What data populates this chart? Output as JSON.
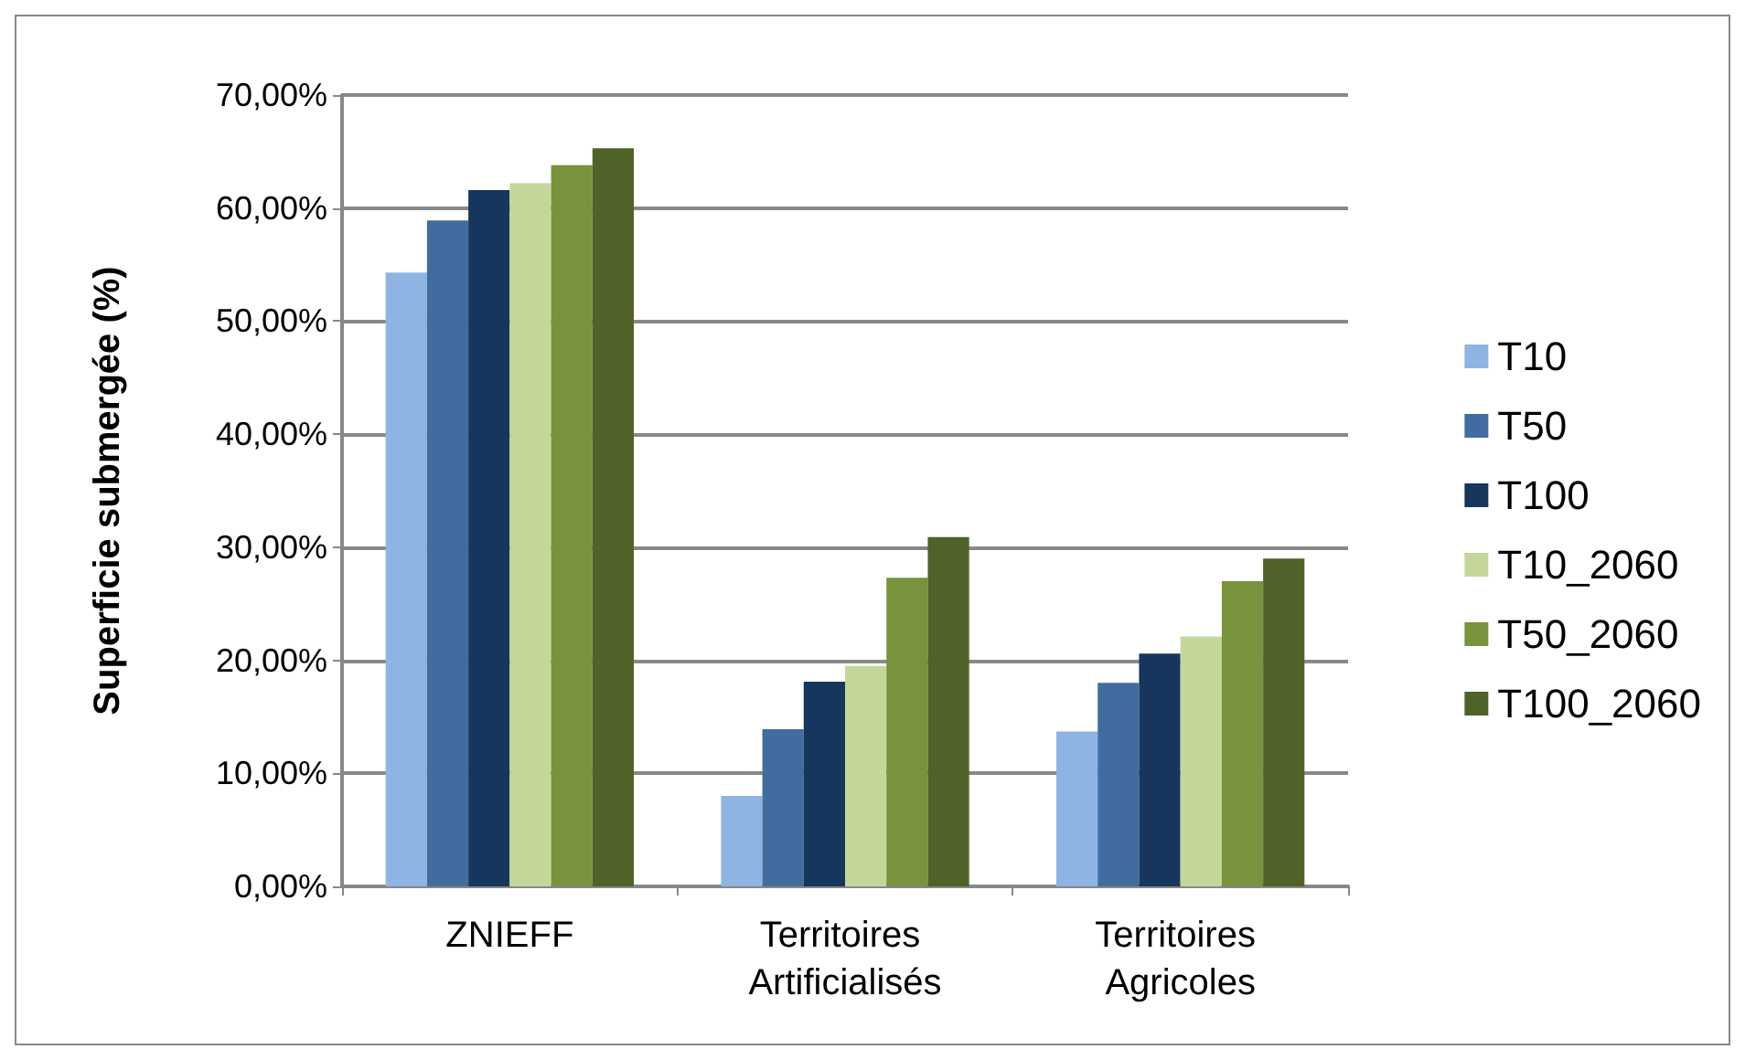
{
  "chart_data": {
    "type": "bar",
    "ylabel": "Superficie submergée (%)",
    "categories": [
      "ZNIEFF",
      "Territoires Artificialisés",
      "Territoires Agricoles"
    ],
    "series": [
      {
        "name": "T10",
        "color": "#8eb4e3",
        "values": [
          54.3,
          8.0,
          13.7
        ]
      },
      {
        "name": "T50",
        "color": "#416c9f",
        "values": [
          58.9,
          13.9,
          18.0
        ]
      },
      {
        "name": "T100",
        "color": "#17365d",
        "values": [
          61.6,
          18.1,
          20.6
        ]
      },
      {
        "name": "T10_2060",
        "color": "#c4d79b",
        "values": [
          62.2,
          19.5,
          22.1
        ]
      },
      {
        "name": "T50_2060",
        "color": "#77933c",
        "values": [
          63.8,
          27.3,
          27.0
        ]
      },
      {
        "name": "T100_2060",
        "color": "#4f6228",
        "values": [
          65.3,
          30.9,
          29.0
        ]
      }
    ],
    "ylim": [
      0,
      70
    ],
    "yticks": [
      {
        "value": 0,
        "label": "0,00%"
      },
      {
        "value": 10,
        "label": "10,00%"
      },
      {
        "value": 20,
        "label": "20,00%"
      },
      {
        "value": 30,
        "label": "30,00%"
      },
      {
        "value": 40,
        "label": "40,00%"
      },
      {
        "value": 50,
        "label": "50,00%"
      },
      {
        "value": 60,
        "label": "60,00%"
      },
      {
        "value": 70,
        "label": "70,00%"
      }
    ],
    "grid": "y",
    "legend": "right"
  }
}
